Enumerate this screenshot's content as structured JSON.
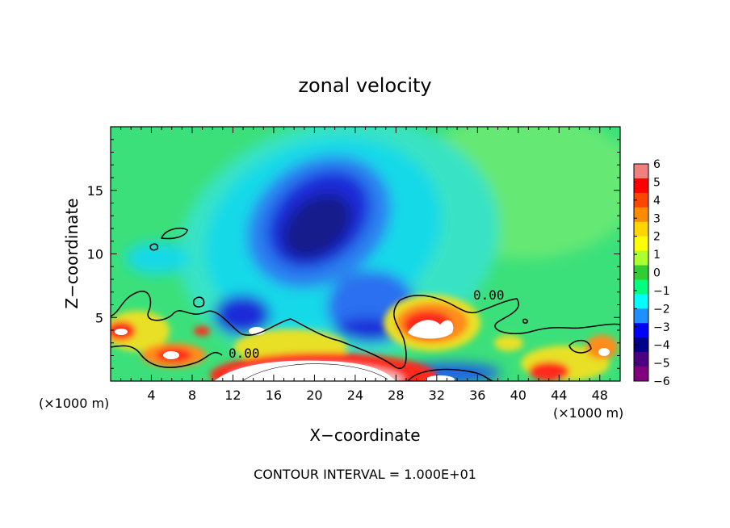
{
  "chart_data": {
    "type": "heatmap",
    "title": "zonal velocity",
    "xlabel": "X−coordinate",
    "ylabel": "Z−coordinate",
    "x_unit_left": "(×1000 m)",
    "x_unit_right": "(×1000 m)",
    "footer": "CONTOUR INTERVAL = 1.000E+01",
    "xlim": [
      0,
      50
    ],
    "ylim": [
      0,
      20
    ],
    "x_ticks": [
      "4",
      "8",
      "12",
      "16",
      "20",
      "24",
      "28",
      "32",
      "36",
      "40",
      "44",
      "48"
    ],
    "y_ticks": [
      "5",
      "10",
      "15"
    ],
    "contour_labels": [
      "0.00",
      "0.00"
    ],
    "colorbar": {
      "range": [
        -6,
        6
      ],
      "ticks": [
        "6",
        "5",
        "4",
        "3",
        "2",
        "1",
        "0",
        "−1",
        "−2",
        "−3",
        "−4",
        "−5",
        "−6"
      ],
      "colors": [
        "#f08080",
        "#ff0000",
        "#ff4500",
        "#ff8c00",
        "#ffd700",
        "#ffff00",
        "#adff2f",
        "#32cd32",
        "#00ff7f",
        "#00ffff",
        "#1e90ff",
        "#0000ff",
        "#00008b",
        "#4b0082",
        "#800080"
      ]
    },
    "features": [
      {
        "x": 20,
        "z": 12.5,
        "value": -6
      },
      {
        "x": 24,
        "z": 5.5,
        "value": -4
      },
      {
        "x": 32,
        "z": 4.5,
        "value": 6
      },
      {
        "x": 14,
        "z": 4.5,
        "value": 6
      },
      {
        "x": 6,
        "z": 2.3,
        "value": 5
      },
      {
        "x": 1,
        "z": 4,
        "value": 4
      },
      {
        "x": 20,
        "z": 1.2,
        "value": 6
      },
      {
        "x": 46,
        "z": 2.5,
        "value": 4
      },
      {
        "x": 4,
        "z": 10,
        "value": -3
      },
      {
        "x": 40,
        "z": 12,
        "value": 0
      }
    ]
  }
}
